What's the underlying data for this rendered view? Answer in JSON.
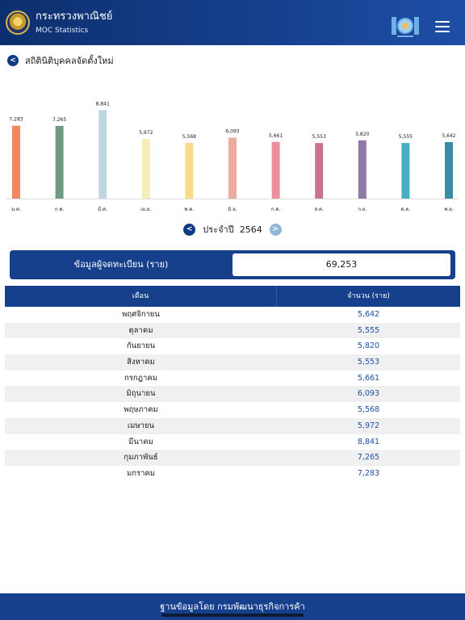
{
  "header": {
    "brand_th": "กระทรวงพาณิชย์",
    "brand_en": "MOC Statistics",
    "logo_icon": "ministry-seal-icon",
    "partner_icon": "dbd-logo-icon",
    "menu_icon": "hamburger-menu-icon"
  },
  "page": {
    "title": "สถิตินิติบุคคลจัดตั้งใหม่"
  },
  "colors": {
    "primary": "#163f8c",
    "accent": "#1d4ea6"
  },
  "chart_data": {
    "type": "bar",
    "categories": [
      "ม.ค.",
      "ก.พ.",
      "มี.ค.",
      "เม.ย.",
      "พ.ค.",
      "มิ.ย.",
      "ก.ค.",
      "ส.ค.",
      "ก.ย.",
      "ต.ค.",
      "พ.ย."
    ],
    "values": [
      7283,
      7265,
      8841,
      5972,
      5568,
      6093,
      5661,
      5553,
      5820,
      5555,
      5642
    ],
    "value_labels": [
      "7,283",
      "7,265",
      "8,841",
      "5,972",
      "5,568",
      "6,093",
      "5,661",
      "5,553",
      "5,820",
      "5,555",
      "5,642"
    ],
    "colors": [
      "#f0875f",
      "#6f9b86",
      "#bfd6e0",
      "#f5edbb",
      "#f9d98a",
      "#e8ad9c",
      "#ed8f9a",
      "#c97394",
      "#8e7aa4",
      "#48aec3",
      "#3a8ba6"
    ],
    "ylim": [
      0,
      10000
    ],
    "grid": false,
    "title": "",
    "xlabel": "",
    "ylabel": ""
  },
  "year_selector": {
    "label": "ประจำปี",
    "year": "2564",
    "prev_icon": "chevron-left-icon",
    "next_icon": "chevron-right-icon"
  },
  "summary": {
    "label": "ข้อมูลผู้จดทะเบียน (ราย)",
    "value": "69,253"
  },
  "table": {
    "headers": [
      "เดือน",
      "จำนวน (ราย)"
    ],
    "rows": [
      {
        "month": "พฤศจิกายน",
        "count": "5,642"
      },
      {
        "month": "ตุลาคม",
        "count": "5,555"
      },
      {
        "month": "กันยายน",
        "count": "5,820"
      },
      {
        "month": "สิงหาคม",
        "count": "5,553"
      },
      {
        "month": "กรกฎาคม",
        "count": "5,661"
      },
      {
        "month": "มิถุนายน",
        "count": "6,093"
      },
      {
        "month": "พฤษภาคม",
        "count": "5,568"
      },
      {
        "month": "เมษายน",
        "count": "5,972"
      },
      {
        "month": "มีนาคม",
        "count": "8,841"
      },
      {
        "month": "กุมภาพันธ์",
        "count": "7,265"
      },
      {
        "month": "มกราคม",
        "count": "7,283"
      }
    ]
  },
  "footer": {
    "text": "ฐานข้อมูลโดย กรมพัฒนาธุรกิจการค้า"
  }
}
